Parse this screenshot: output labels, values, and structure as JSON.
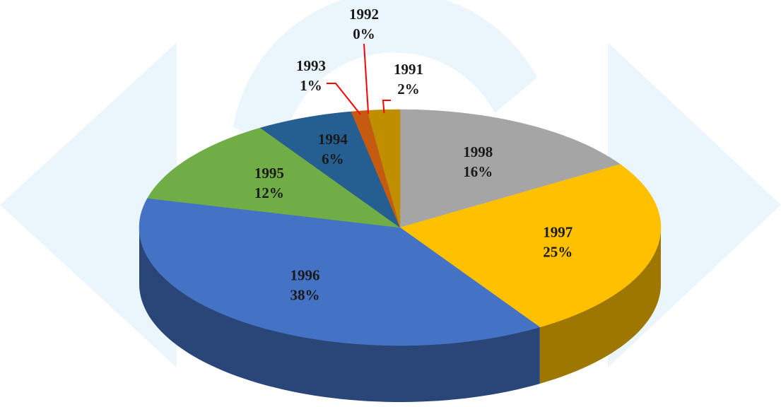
{
  "chart_data": {
    "type": "pie",
    "categories": [
      "1998",
      "1997",
      "1996",
      "1995",
      "1994",
      "1993",
      "1992",
      "1991"
    ],
    "values": [
      16,
      25,
      38,
      12,
      6,
      1,
      0,
      2
    ],
    "value_labels": [
      "16%",
      "25%",
      "38%",
      "12%",
      "6%",
      "1%",
      "0%",
      "2%"
    ],
    "colors": [
      "#a5a5a5",
      "#ffc000",
      "#4472c4",
      "#70ad47",
      "#255e91",
      "#c55a11",
      "#7f7f7f",
      "#bf8f00"
    ],
    "leader_color": "#ff0000"
  }
}
